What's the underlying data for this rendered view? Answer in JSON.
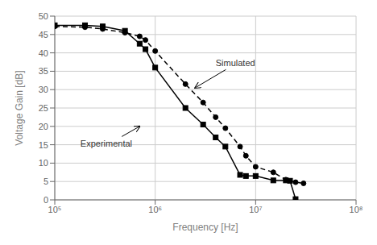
{
  "chart_data": {
    "type": "line",
    "xlabel": "Frequency [Hz]",
    "ylabel": "Voltage Gain [dB]",
    "log": "x",
    "xlim": [
      100000,
      100000000
    ],
    "ylim": [
      0,
      50
    ],
    "xticks": [
      {
        "value": 100000,
        "label": "10⁵"
      },
      {
        "value": 1000000,
        "label": "10⁶"
      },
      {
        "value": 10000000,
        "label": "10⁷"
      },
      {
        "value": 100000000,
        "label": "10⁸"
      }
    ],
    "yticks": [
      0,
      5,
      10,
      15,
      20,
      25,
      30,
      35,
      40,
      45,
      50
    ],
    "grid": true,
    "series": [
      {
        "name": "Experimental",
        "color": "#000000",
        "line_style": "solid",
        "marker": "square",
        "x": [
          100000,
          200000,
          300000,
          500000,
          700000,
          800000,
          1000000,
          2000000,
          3000000,
          4000000,
          5000000,
          7000000,
          8000000,
          10000000,
          15000000,
          20000000,
          22000000,
          25000000
        ],
        "values": [
          47.5,
          47.5,
          47.2,
          46.0,
          42.5,
          41.0,
          36.0,
          25.0,
          20.5,
          17.0,
          14.5,
          6.8,
          6.5,
          6.5,
          5.3,
          5.3,
          5.2,
          0.2
        ]
      },
      {
        "name": "Simulated",
        "color": "#000000",
        "line_style": "dashed",
        "marker": "circle",
        "x": [
          100000,
          200000,
          300000,
          500000,
          700000,
          800000,
          1000000,
          2000000,
          3000000,
          4000000,
          5000000,
          7000000,
          8000000,
          10000000,
          15000000,
          20000000,
          25000000,
          30000000
        ],
        "values": [
          47.2,
          47.0,
          46.5,
          45.5,
          44.5,
          43.5,
          40.5,
          31.5,
          26.5,
          22.5,
          19.5,
          14.5,
          12.0,
          9.0,
          7.5,
          5.5,
          4.8,
          4.5
        ]
      }
    ],
    "annotations": [
      {
        "text": "Experimental",
        "x": 700000,
        "y": 20.0,
        "text_x": 180000,
        "text_y": 14.5
      },
      {
        "text": "Simulated",
        "x": 2500000,
        "y": 30.5,
        "text_x": 4000000,
        "text_y": 36.5
      }
    ]
  }
}
